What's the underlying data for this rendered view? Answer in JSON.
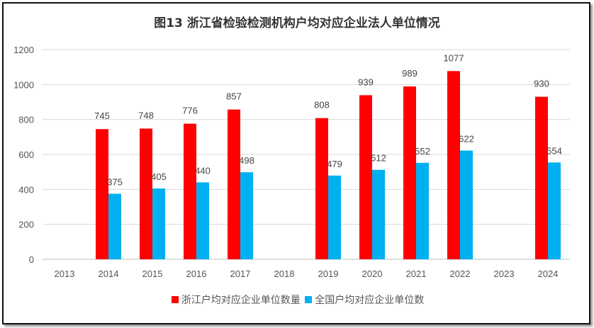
{
  "chart_data": {
    "type": "bar",
    "title": "图13  浙江省检验检测机构户均对应企业法人单位情况",
    "xlabel": "",
    "ylabel": "",
    "categories": [
      "2013",
      "2014",
      "2015",
      "2016",
      "2017",
      "2018",
      "2019",
      "2020",
      "2021",
      "2022",
      "2023",
      "2024"
    ],
    "series": [
      {
        "name": "浙江户均对应企业单位数量",
        "color": "#ff0000",
        "values": [
          null,
          745,
          748,
          776,
          857,
          null,
          808,
          939,
          989,
          1077,
          null,
          930
        ]
      },
      {
        "name": "全国户均对应企业单位数",
        "color": "#00b0f0",
        "values": [
          null,
          375,
          405,
          440,
          498,
          null,
          479,
          512,
          552,
          622,
          null,
          554
        ]
      }
    ],
    "yticks": [
      0,
      200,
      400,
      600,
      800,
      1000,
      1200
    ],
    "ylim": [
      0,
      1200
    ],
    "grid": true,
    "legend": "bottom"
  }
}
